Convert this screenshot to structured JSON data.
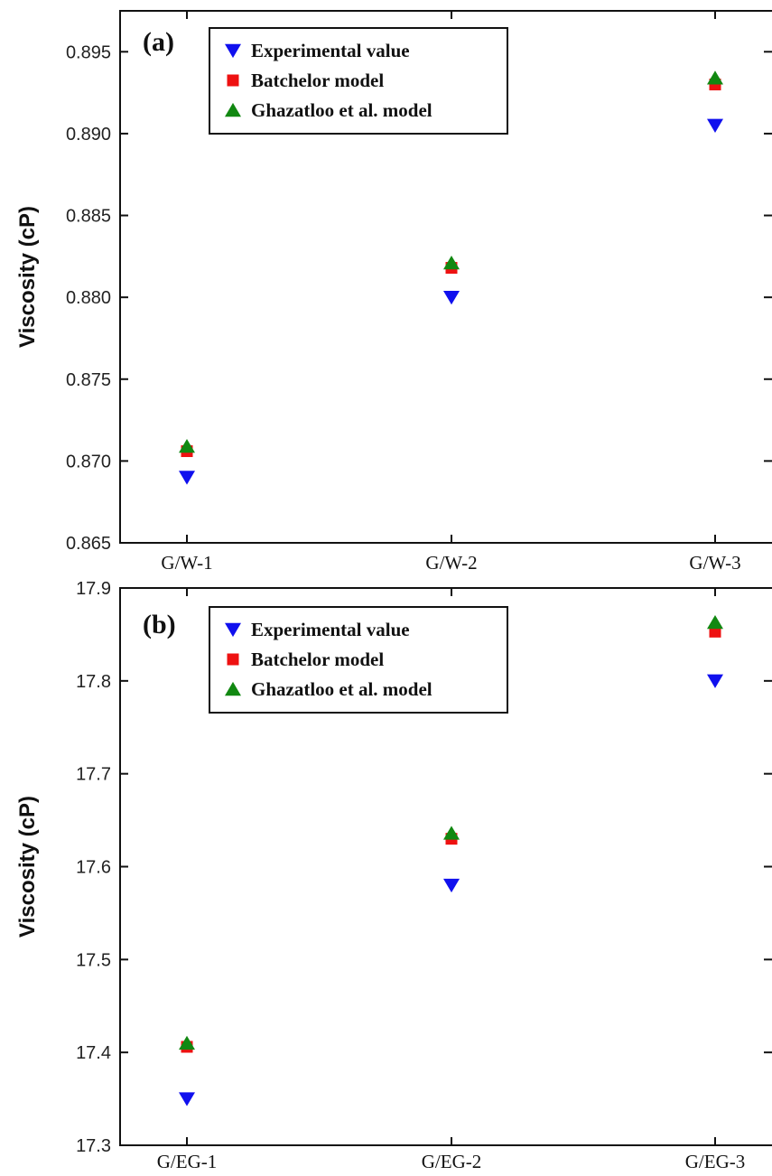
{
  "colors": {
    "Experimental value": "#1010ee",
    "Batchelor model": "#ee1111",
    "Ghazatloo et al. model": "#118811"
  },
  "chart_data": [
    {
      "type": "scatter",
      "panel_label": "(a)",
      "ylabel": "Viscosity (cP)",
      "xlabel": "",
      "categories": [
        "G/W-1",
        "G/W-2",
        "G/W-3"
      ],
      "ylim": [
        0.865,
        0.8975
      ],
      "yticks": [
        "0.865",
        "0.870",
        "0.875",
        "0.880",
        "0.885",
        "0.890",
        "0.895"
      ],
      "legend_position": "top-left",
      "series": [
        {
          "name": "Experimental value",
          "marker": "triangle-down",
          "values": [
            0.869,
            0.88,
            0.8905
          ]
        },
        {
          "name": "Batchelor model",
          "marker": "square",
          "values": [
            0.8706,
            0.8818,
            0.893
          ]
        },
        {
          "name": "Ghazatloo et al. model",
          "marker": "triangle-up",
          "values": [
            0.8709,
            0.8821,
            0.8934
          ]
        }
      ]
    },
    {
      "type": "scatter",
      "panel_label": "(b)",
      "ylabel": "Viscosity (cP)",
      "xlabel": "",
      "categories": [
        "G/EG-1",
        "G/EG-2",
        "G/EG-3"
      ],
      "ylim": [
        17.3,
        17.9
      ],
      "yticks": [
        "17.3",
        "17.4",
        "17.5",
        "17.6",
        "17.7",
        "17.8",
        "17.9"
      ],
      "legend_position": "top-left",
      "series": [
        {
          "name": "Experimental value",
          "marker": "triangle-down",
          "values": [
            17.35,
            17.58,
            17.8
          ]
        },
        {
          "name": "Batchelor model",
          "marker": "square",
          "values": [
            17.406,
            17.63,
            17.853
          ]
        },
        {
          "name": "Ghazatloo et al. model",
          "marker": "triangle-up",
          "values": [
            17.41,
            17.636,
            17.863
          ]
        }
      ]
    }
  ]
}
